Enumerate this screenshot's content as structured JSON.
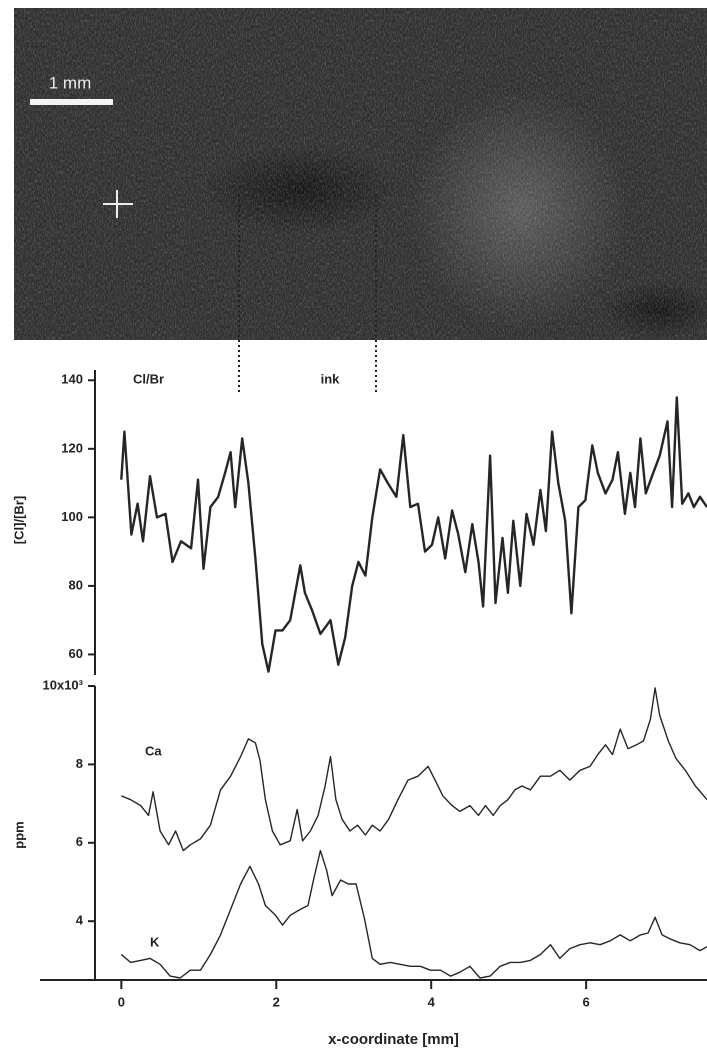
{
  "image": {
    "scale_bar": "1 mm"
  },
  "chart_data": [
    {
      "type": "line",
      "ylabel": "[Cl]/[Br]",
      "annotation": "ink",
      "xlim": [
        -1.05,
        7.56
      ],
      "ylim": [
        54,
        143
      ],
      "yticks": [
        60,
        80,
        100,
        120,
        140
      ],
      "series": [
        {
          "name": "Cl/Br",
          "color": "#262626",
          "x": [
            0,
            0.04,
            0.13,
            0.21,
            0.28,
            0.37,
            0.46,
            0.57,
            0.66,
            0.77,
            0.9,
            0.99,
            1.06,
            1.15,
            1.25,
            1.34,
            1.41,
            1.47,
            1.56,
            1.64,
            1.73,
            1.82,
            1.9,
            1.99,
            2.08,
            2.18,
            2.31,
            2.37,
            2.46,
            2.57,
            2.7,
            2.8,
            2.89,
            2.98,
            3.06,
            3.15,
            3.24,
            3.34,
            3.44,
            3.55,
            3.64,
            3.73,
            3.83,
            3.92,
            4.01,
            4.09,
            4.18,
            4.27,
            4.35,
            4.44,
            4.53,
            4.61,
            4.67,
            4.76,
            4.83,
            4.92,
            4.99,
            5.06,
            5.15,
            5.23,
            5.32,
            5.41,
            5.48,
            5.56,
            5.64,
            5.73,
            5.81,
            5.9,
            5.99,
            6.08,
            6.15,
            6.25,
            6.34,
            6.41,
            6.5,
            6.57,
            6.63,
            6.7,
            6.77,
            6.85,
            6.95,
            7.05,
            7.11,
            7.17,
            7.24,
            7.32,
            7.39,
            7.47,
            7.56
          ],
          "values": [
            111,
            125,
            95,
            104,
            93,
            112,
            100,
            101,
            87,
            93,
            91,
            111,
            85,
            103,
            106,
            113,
            119,
            103,
            123,
            110,
            88,
            63,
            55,
            67,
            67,
            70,
            86,
            78,
            73,
            66,
            70,
            57,
            65,
            80,
            87,
            83,
            100,
            114,
            110,
            106,
            124,
            103,
            104,
            90,
            92,
            100,
            88,
            102,
            95,
            84,
            98,
            87,
            74,
            118,
            75,
            94,
            78,
            99,
            80,
            101,
            92,
            108,
            96,
            125,
            110,
            99,
            72,
            103,
            105,
            121,
            113,
            107,
            111,
            119,
            101,
            113,
            103,
            123,
            107,
            112,
            118,
            128,
            103,
            135,
            104,
            107,
            103,
            106,
            103
          ]
        }
      ]
    },
    {
      "type": "line",
      "ylabel": "ppm",
      "xlabel": "x-coordinate [mm]",
      "xlim": [
        -1.05,
        7.56
      ],
      "xticks": [
        0,
        2,
        4,
        6
      ],
      "ylim": [
        2.5,
        10
      ],
      "yticks": [
        4,
        6,
        8,
        {
          "value": 10,
          "label": "10x10³"
        }
      ],
      "series": [
        {
          "name": "Ca",
          "color": "#262626",
          "x": [
            0,
            0.12,
            0.25,
            0.35,
            0.41,
            0.5,
            0.61,
            0.7,
            0.8,
            0.89,
            1.02,
            1.15,
            1.28,
            1.41,
            1.54,
            1.64,
            1.73,
            1.79,
            1.86,
            1.95,
            2.05,
            2.18,
            2.27,
            2.34,
            2.44,
            2.54,
            2.63,
            2.7,
            2.77,
            2.85,
            2.95,
            3.05,
            3.15,
            3.24,
            3.34,
            3.45,
            3.57,
            3.7,
            3.83,
            3.96,
            4.05,
            4.15,
            4.27,
            4.37,
            4.5,
            4.61,
            4.7,
            4.8,
            4.89,
            4.99,
            5.08,
            5.17,
            5.28,
            5.41,
            5.54,
            5.66,
            5.79,
            5.92,
            6.05,
            6.15,
            6.25,
            6.34,
            6.44,
            6.54,
            6.65,
            6.74,
            6.83,
            6.89,
            6.95,
            7.06,
            7.16,
            7.28,
            7.41,
            7.56
          ],
          "values": [
            7.2,
            7.1,
            6.95,
            6.7,
            7.3,
            6.3,
            5.95,
            6.3,
            5.8,
            5.95,
            6.1,
            6.45,
            7.35,
            7.7,
            8.2,
            8.65,
            8.55,
            8.1,
            7.1,
            6.3,
            5.95,
            6.05,
            6.85,
            6.05,
            6.3,
            6.7,
            7.45,
            8.2,
            7.1,
            6.6,
            6.3,
            6.45,
            6.2,
            6.45,
            6.3,
            6.6,
            7.1,
            7.6,
            7.7,
            7.95,
            7.6,
            7.2,
            6.95,
            6.8,
            6.95,
            6.7,
            6.95,
            6.7,
            6.95,
            7.1,
            7.35,
            7.45,
            7.35,
            7.7,
            7.7,
            7.85,
            7.6,
            7.85,
            7.95,
            8.25,
            8.5,
            8.25,
            8.9,
            8.4,
            8.5,
            8.6,
            9.15,
            9.95,
            9.25,
            8.6,
            8.15,
            7.85,
            7.45,
            7.1
          ]
        },
        {
          "name": "K",
          "color": "#262626",
          "x": [
            0,
            0.12,
            0.25,
            0.37,
            0.5,
            0.63,
            0.76,
            0.89,
            1.02,
            1.15,
            1.28,
            1.41,
            1.54,
            1.66,
            1.77,
            1.86,
            1.99,
            2.08,
            2.18,
            2.31,
            2.41,
            2.48,
            2.57,
            2.65,
            2.72,
            2.83,
            2.93,
            3.03,
            3.14,
            3.24,
            3.34,
            3.47,
            3.6,
            3.73,
            3.86,
            3.99,
            4.12,
            4.25,
            4.37,
            4.5,
            4.63,
            4.76,
            4.89,
            5.02,
            5.15,
            5.28,
            5.41,
            5.54,
            5.66,
            5.79,
            5.92,
            6.05,
            6.18,
            6.31,
            6.44,
            6.57,
            6.7,
            6.8,
            6.89,
            6.98,
            7.08,
            7.21,
            7.34,
            7.47,
            7.56
          ],
          "values": [
            3.15,
            2.95,
            3.0,
            3.05,
            2.9,
            2.6,
            2.55,
            2.75,
            2.75,
            3.15,
            3.65,
            4.3,
            4.95,
            5.4,
            4.95,
            4.4,
            4.15,
            3.9,
            4.15,
            4.3,
            4.4,
            5.05,
            5.8,
            5.3,
            4.65,
            5.05,
            4.95,
            4.95,
            4.05,
            3.05,
            2.9,
            2.95,
            2.9,
            2.85,
            2.85,
            2.75,
            2.75,
            2.6,
            2.7,
            2.85,
            2.55,
            2.6,
            2.85,
            2.95,
            2.95,
            3.0,
            3.15,
            3.4,
            3.05,
            3.3,
            3.4,
            3.45,
            3.4,
            3.5,
            3.65,
            3.5,
            3.65,
            3.7,
            4.1,
            3.65,
            3.55,
            3.45,
            3.4,
            3.25,
            3.35
          ]
        }
      ]
    }
  ]
}
